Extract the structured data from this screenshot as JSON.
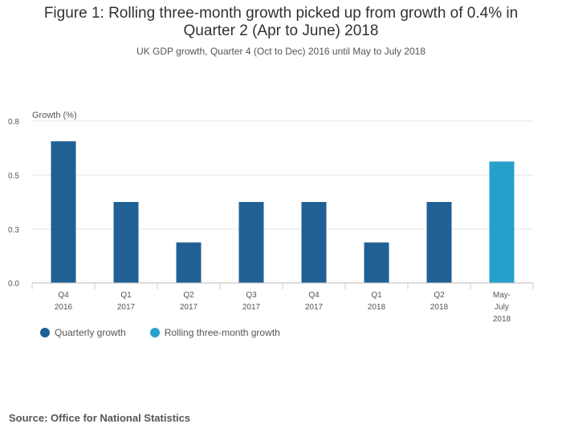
{
  "title_line1": "Figure 1: Rolling three-month growth picked up from growth of 0.4% in",
  "title_line2": "Quarter 2 (Apr to June) 2018",
  "subtitle": "UK GDP growth, Quarter 4 (Oct to Dec) 2016 until May to July 2018",
  "source": "Source: Office for National Statistics",
  "colors": {
    "quarterly": "#206095",
    "rolling": "#27a0cc"
  },
  "chart_data": {
    "type": "bar",
    "title": "Figure 1: Rolling three-month growth picked up from growth of 0.4% in Quarter 2 (Apr to June) 2018",
    "subtitle": "UK GDP growth, Quarter 4 (Oct to Dec) 2016 until May to July 2018",
    "ylabel": "Growth (%)",
    "ylim": [
      0,
      0.8
    ],
    "yticks": [
      "0.0",
      "0.3",
      "0.5",
      "0.8"
    ],
    "ytick_values": [
      0,
      0.266,
      0.533,
      0.8
    ],
    "categories": [
      [
        "Q4",
        "2016"
      ],
      [
        "Q1",
        "2017"
      ],
      [
        "Q2",
        "2017"
      ],
      [
        "Q3",
        "2017"
      ],
      [
        "Q4",
        "2017"
      ],
      [
        "Q1",
        "2018"
      ],
      [
        "Q2",
        "2018"
      ],
      [
        "May-",
        "July",
        "2018"
      ]
    ],
    "series": [
      {
        "name": "Quarterly growth",
        "values": [
          0.7,
          0.4,
          0.2,
          0.4,
          0.4,
          0.2,
          0.4,
          null
        ]
      },
      {
        "name": "Rolling three-month growth",
        "values": [
          null,
          null,
          null,
          null,
          null,
          null,
          null,
          0.6
        ]
      }
    ],
    "grid": true,
    "legend": "bottom-left"
  }
}
